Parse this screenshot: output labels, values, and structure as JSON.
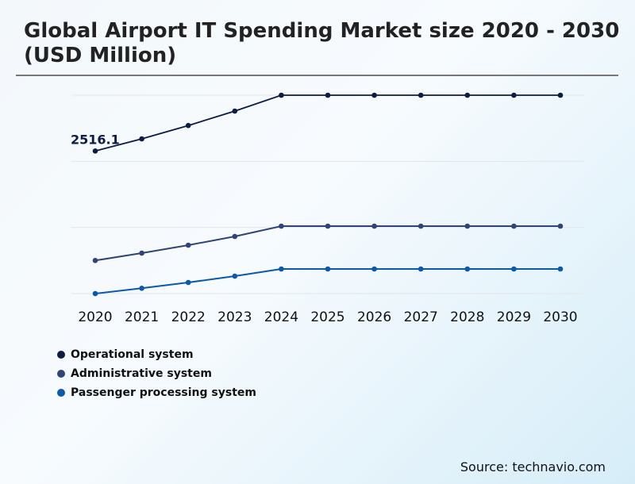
{
  "chart_data": {
    "type": "line",
    "title": "Global Airport IT Spending Market size 2020 - 2030 (USD Million)",
    "x": [
      "2020",
      "2021",
      "2022",
      "2023",
      "2024",
      "2025",
      "2026",
      "2027",
      "2028",
      "2029",
      "2030"
    ],
    "ylim": [
      0,
      3500
    ],
    "grid": true,
    "legend_position": "bottom-left",
    "series": [
      {
        "name": "Operational system",
        "color": "#0c1c45",
        "values": [
          2516.1,
          2730,
          2965,
          3220,
          3500,
          3500,
          3500,
          3500,
          3500,
          3500,
          3500
        ]
      },
      {
        "name": "Administrative system",
        "color": "#2f4577",
        "values": [
          584,
          714,
          854,
          1008,
          1190,
          1190,
          1190,
          1190,
          1190,
          1190,
          1190
        ]
      },
      {
        "name": "Passenger processing system",
        "color": "#0b59a8",
        "values": [
          0,
          94,
          196,
          308,
          434,
          434,
          434,
          434,
          434,
          434,
          434
        ]
      }
    ],
    "annotations": [
      {
        "series": "Operational system",
        "x": "2020",
        "text": "2516.1"
      }
    ]
  },
  "source": "Source: technavio.com"
}
